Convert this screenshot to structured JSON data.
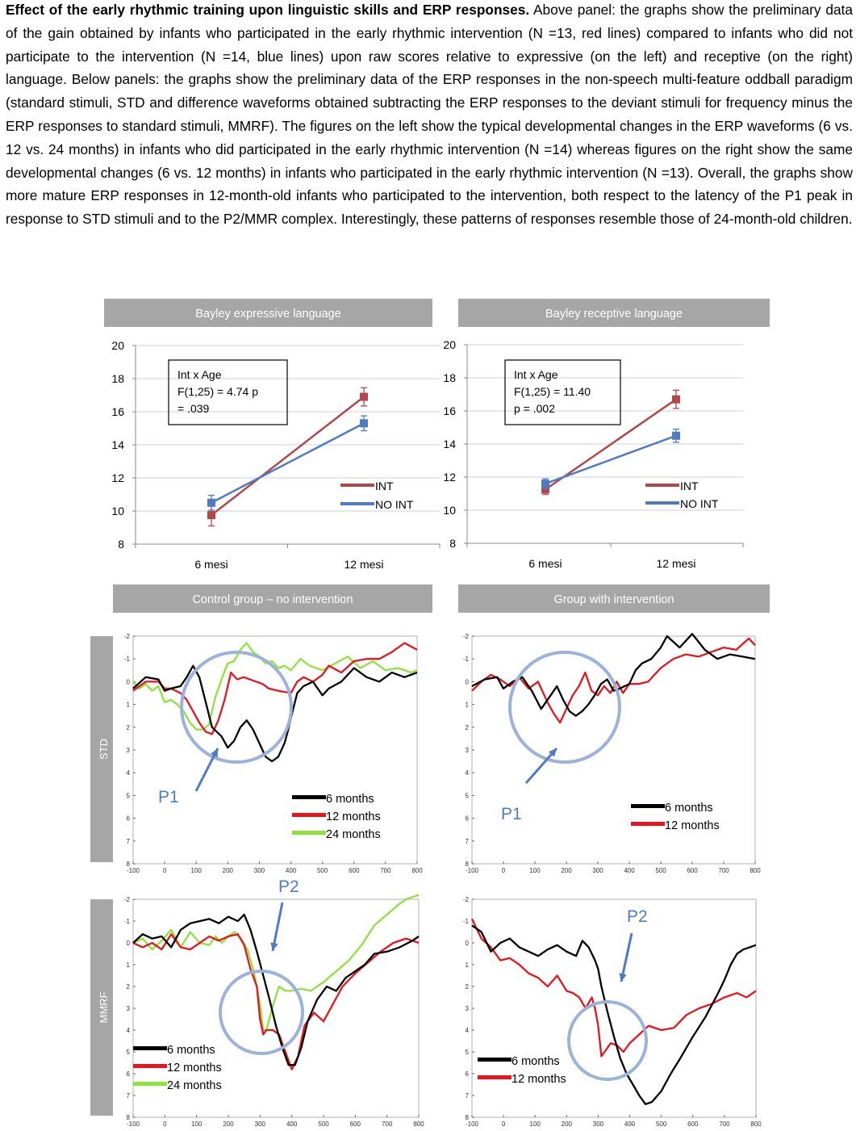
{
  "caption": {
    "title": "Effect of the early rhythmic training upon linguistic skills and ERP responses.",
    "body": "Above panel: the graphs show the preliminary data of the gain obtained by infants who participated in the early rhythmic intervention (N =13, red lines) compared to infants who did not participate to the intervention (N =14, blue lines) upon raw scores relative to expressive (on the left) and receptive (on the right) language. Below panels: the graphs show the preliminary data of the ERP responses in the non-speech multi-feature oddball paradigm (standard stimuli, STD and difference waveforms obtained subtracting the ERP responses to the deviant stimuli for frequency minus the ERP responses to standard stimuli, MMRF). The figures on the left show the typical developmental changes in the ERP waveforms (6 vs. 12 vs. 24 months) in infants who did participated in the early rhythmic intervention (N =14) whereas figures on the right show the same developmental changes (6 vs. 12 months) in infants who participated in the early rhythmic intervention (N =13). Overall, the graphs show more mature ERP responses in 12-month-old infants who participated to the intervention, both respect to the latency of the P1 peak in response to STD stimuli and to the P2/MMR complex. Interestingly, these patterns of responses resemble those of 24-month-old children."
  },
  "colors": {
    "int": "#b0484a",
    "noint": "#4f7ac4",
    "m6": "#000000",
    "m12": "#e8141e",
    "m24": "#8fe23d",
    "circle": "#9cb2d8",
    "arrow": "#4f7ac4",
    "panel_header": "#a6a6a6"
  },
  "chart_data": [
    {
      "type": "line",
      "title": "Bayley expressive language",
      "categories": [
        "6 mesi",
        "12 mesi"
      ],
      "ylim": [
        8,
        20
      ],
      "yticks": [
        "8",
        "10",
        "12",
        "14",
        "16",
        "18",
        "20"
      ],
      "series": [
        {
          "name": "INT",
          "values": [
            9.75,
            16.9
          ],
          "errors": [
            0.65,
            0.55
          ]
        },
        {
          "name": "NO INT",
          "values": [
            10.5,
            15.3
          ],
          "errors": [
            0.45,
            0.45
          ]
        }
      ],
      "annotation": [
        "Int x Age",
        "F(1,25) = 4.74 p",
        "= .039"
      ]
    },
    {
      "type": "line",
      "title": "Bayley receptive language",
      "categories": [
        "6 mesi",
        "12 mesi"
      ],
      "ylim": [
        8,
        20
      ],
      "yticks": [
        "8",
        "10",
        "12",
        "14",
        "16",
        "18",
        "20"
      ],
      "series": [
        {
          "name": "INT",
          "values": [
            11.25,
            16.7
          ],
          "errors": [
            0.3,
            0.55
          ]
        },
        {
          "name": "NO INT",
          "values": [
            11.6,
            14.5
          ],
          "errors": [
            0.3,
            0.4
          ]
        }
      ],
      "annotation": [
        "Int x Age",
        "F(1,25) = 11.40",
        "p = .002"
      ]
    },
    {
      "type": "line",
      "title": "Control group – no intervention",
      "row_label": "STD",
      "xlim": [
        -100,
        800
      ],
      "ylim": [
        -2,
        8
      ],
      "y_inverted": true,
      "xticks": [
        "-100",
        "0",
        "100",
        "200",
        "300",
        "400",
        "500",
        "600",
        "700",
        "800"
      ],
      "yticks": [
        "-2",
        "-1",
        "0",
        "1",
        "2",
        "3",
        "4",
        "5",
        "6",
        "7",
        "8"
      ],
      "peak_label": "P1",
      "series": [
        {
          "name": "6 months",
          "x": [
            -100,
            -60,
            -20,
            0,
            20,
            50,
            70,
            90,
            110,
            130,
            150,
            180,
            200,
            220,
            240,
            260,
            280,
            300,
            320,
            340,
            360,
            380,
            390,
            400,
            420,
            440,
            470,
            500,
            520,
            560,
            600,
            640,
            680,
            720,
            760,
            800
          ],
          "y": [
            0.3,
            -0.2,
            -0.1,
            0.4,
            0.3,
            0.2,
            -0.2,
            -0.7,
            -0.2,
            0.9,
            2.0,
            2.4,
            2.9,
            2.6,
            2.0,
            1.7,
            2.1,
            2.7,
            3.3,
            3.5,
            3.3,
            2.7,
            2.2,
            1.6,
            0.5,
            0.2,
            0.0,
            0.6,
            0.3,
            0.0,
            -0.6,
            -0.2,
            0.0,
            -0.4,
            -0.2,
            -0.4
          ]
        },
        {
          "name": "12 months",
          "x": [
            -100,
            -60,
            -20,
            0,
            20,
            50,
            70,
            90,
            110,
            130,
            150,
            170,
            190,
            210,
            230,
            250,
            270,
            290,
            310,
            330,
            360,
            400,
            420,
            440,
            470,
            500,
            520,
            560,
            600,
            640,
            680,
            720,
            760,
            800
          ],
          "y": [
            0.4,
            0.0,
            0.0,
            0.3,
            0.3,
            0.5,
            0.8,
            1.3,
            1.8,
            2.2,
            2.3,
            1.7,
            0.8,
            -0.4,
            -0.1,
            -0.2,
            -0.1,
            0.0,
            0.1,
            0.3,
            0.4,
            0.5,
            0.0,
            -0.2,
            0.0,
            -0.3,
            -0.7,
            -0.4,
            -0.9,
            -1.0,
            -1.0,
            -1.3,
            -1.7,
            -1.4
          ]
        },
        {
          "name": "24 months",
          "x": [
            -100,
            -80,
            -60,
            -40,
            -20,
            0,
            20,
            40,
            60,
            80,
            100,
            120,
            140,
            160,
            180,
            200,
            220,
            240,
            260,
            280,
            300,
            320,
            340,
            360,
            380,
            400,
            430,
            460,
            500,
            540,
            580,
            620,
            660,
            700,
            740,
            780,
            800
          ],
          "y": [
            0.0,
            0.3,
            0.1,
            0.4,
            0.2,
            0.9,
            0.8,
            1.0,
            1.3,
            1.8,
            2.1,
            2.1,
            1.9,
            0.7,
            -0.1,
            -0.8,
            -0.9,
            -1.4,
            -1.7,
            -1.3,
            -1.1,
            -0.8,
            -0.9,
            -0.6,
            -0.7,
            -0.5,
            -1.0,
            -0.7,
            -0.5,
            -0.8,
            -1.1,
            -0.6,
            -0.9,
            -0.5,
            -0.6,
            -0.4,
            -0.5
          ]
        }
      ]
    },
    {
      "type": "line",
      "title": "Group with intervention",
      "row_label": "STD",
      "xlim": [
        -100,
        800
      ],
      "ylim": [
        -2,
        8
      ],
      "y_inverted": true,
      "xticks": [
        "-100",
        "0",
        "100",
        "200",
        "300",
        "400",
        "500",
        "600",
        "700",
        "800"
      ],
      "yticks": [
        "-2",
        "-1",
        "0",
        "1",
        "2",
        "3",
        "4",
        "5",
        "6",
        "7",
        "8"
      ],
      "peak_label": "P1",
      "series": [
        {
          "name": "6 months",
          "x": [
            -100,
            -60,
            -20,
            0,
            30,
            60,
            90,
            120,
            150,
            170,
            190,
            210,
            230,
            250,
            270,
            290,
            310,
            330,
            350,
            370,
            400,
            420,
            440,
            470,
            500,
            520,
            560,
            600,
            640,
            680,
            720,
            760,
            800
          ],
          "y": [
            0.2,
            -0.1,
            -0.2,
            0.3,
            0.0,
            -0.2,
            0.4,
            1.2,
            0.6,
            0.2,
            0.8,
            1.3,
            1.5,
            1.3,
            1.0,
            0.6,
            0.1,
            -0.1,
            0.4,
            0.3,
            0.1,
            -0.5,
            -0.8,
            -1.0,
            -1.5,
            -2.0,
            -1.5,
            -2.1,
            -1.4,
            -1.0,
            -1.2,
            -1.1,
            -1.0
          ]
        },
        {
          "name": "12 months",
          "x": [
            -100,
            -70,
            -40,
            -10,
            20,
            50,
            80,
            110,
            140,
            160,
            180,
            200,
            220,
            240,
            260,
            280,
            300,
            320,
            340,
            360,
            380,
            400,
            430,
            460,
            500,
            540,
            580,
            620,
            660,
            700,
            740,
            780,
            800
          ],
          "y": [
            0.4,
            0.0,
            -0.3,
            -0.1,
            0.2,
            -0.2,
            0.3,
            0.0,
            0.9,
            1.4,
            1.8,
            1.2,
            0.6,
            0.2,
            -0.4,
            0.4,
            0.6,
            0.2,
            0.5,
            0.0,
            0.5,
            0.1,
            0.1,
            0.0,
            -0.6,
            -1.0,
            -1.2,
            -1.1,
            -1.3,
            -1.5,
            -1.4,
            -1.9,
            -1.6
          ]
        }
      ]
    },
    {
      "type": "line",
      "title": "",
      "row_label": "MMRF",
      "xlim": [
        -100,
        800
      ],
      "ylim": [
        -2,
        8
      ],
      "y_inverted": true,
      "xticks": [
        "-100",
        "0",
        "100",
        "200",
        "300",
        "400",
        "500",
        "600",
        "700",
        "800"
      ],
      "yticks": [
        "-2",
        "-1",
        "0",
        "1",
        "2",
        "3",
        "4",
        "5",
        "6",
        "7",
        "8"
      ],
      "peak_label": "P2",
      "series": [
        {
          "name": "6 months",
          "x": [
            -100,
            -70,
            -40,
            -10,
            20,
            50,
            80,
            110,
            140,
            170,
            200,
            230,
            250,
            270,
            290,
            310,
            330,
            350,
            370,
            390,
            410,
            430,
            450,
            480,
            510,
            540,
            570,
            600,
            630,
            660,
            700,
            740,
            780,
            800
          ],
          "y": [
            0.0,
            -0.4,
            -0.2,
            -0.3,
            0.2,
            -0.6,
            -0.9,
            -1.0,
            -1.1,
            -0.9,
            -1.2,
            -1.0,
            -1.3,
            -0.6,
            0.4,
            1.5,
            2.6,
            3.8,
            4.8,
            5.6,
            5.6,
            4.8,
            3.6,
            2.6,
            2.0,
            2.2,
            1.6,
            1.3,
            1.0,
            0.5,
            0.4,
            0.2,
            -0.1,
            -0.3
          ]
        },
        {
          "name": "12 months",
          "x": [
            -100,
            -70,
            -40,
            -10,
            20,
            50,
            80,
            110,
            140,
            170,
            200,
            230,
            250,
            270,
            290,
            300,
            310,
            320,
            340,
            360,
            380,
            400,
            420,
            440,
            470,
            500,
            530,
            560,
            600,
            640,
            680,
            720,
            760,
            800
          ],
          "y": [
            0.0,
            0.2,
            0.0,
            0.3,
            -0.4,
            0.2,
            0.3,
            0.0,
            -0.3,
            -0.1,
            -0.3,
            -0.4,
            0.1,
            1.2,
            2.0,
            3.5,
            4.2,
            4.0,
            4.0,
            4.2,
            5.0,
            5.8,
            5.2,
            3.8,
            3.2,
            3.6,
            2.8,
            2.0,
            1.4,
            0.9,
            0.4,
            0.0,
            -0.2,
            0.0
          ]
        },
        {
          "name": "24 months",
          "x": [
            -100,
            -70,
            -40,
            -10,
            20,
            50,
            80,
            110,
            140,
            160,
            180,
            200,
            220,
            240,
            260,
            280,
            300,
            310,
            320,
            340,
            360,
            380,
            400,
            430,
            460,
            500,
            540,
            580,
            620,
            660,
            700,
            740,
            760,
            780,
            800
          ],
          "y": [
            0.0,
            -0.2,
            0.3,
            -0.1,
            -0.6,
            0.2,
            -0.5,
            0.0,
            0.1,
            -0.3,
            0.0,
            -0.3,
            -0.5,
            -0.2,
            0.3,
            1.3,
            2.8,
            4.0,
            4.0,
            2.9,
            2.0,
            2.2,
            2.2,
            2.1,
            2.2,
            1.8,
            1.3,
            0.8,
            0.1,
            -0.8,
            -1.3,
            -1.8,
            -2.0,
            -2.1,
            -2.2
          ]
        }
      ]
    },
    {
      "type": "line",
      "title": "",
      "row_label": "MMRF",
      "xlim": [
        -100,
        800
      ],
      "ylim": [
        -2,
        8
      ],
      "y_inverted": true,
      "xticks": [
        "-100",
        "0",
        "100",
        "200",
        "300",
        "400",
        "500",
        "600",
        "700",
        "800"
      ],
      "yticks": [
        "-2",
        "-1",
        "0",
        "1",
        "2",
        "3",
        "4",
        "5",
        "6",
        "7",
        "8"
      ],
      "peak_label": "P2",
      "series": [
        {
          "name": "6 months",
          "x": [
            -100,
            -70,
            -40,
            -10,
            20,
            50,
            80,
            110,
            140,
            170,
            200,
            230,
            250,
            270,
            290,
            300,
            310,
            330,
            350,
            370,
            390,
            410,
            430,
            450,
            470,
            500,
            530,
            560,
            600,
            640,
            680,
            700,
            720,
            740,
            760,
            780,
            800
          ],
          "y": [
            -0.8,
            -0.5,
            0.4,
            0.0,
            -0.2,
            0.2,
            0.4,
            0.6,
            0.3,
            0.1,
            0.4,
            0.6,
            -0.1,
            0.2,
            0.8,
            1.2,
            2.0,
            3.2,
            4.3,
            5.3,
            6.0,
            6.5,
            7.0,
            7.4,
            7.3,
            6.8,
            6.0,
            5.3,
            4.3,
            3.4,
            2.3,
            1.7,
            1.0,
            0.5,
            0.3,
            0.2,
            0.1
          ]
        },
        {
          "name": "12 months",
          "x": [
            -100,
            -70,
            -40,
            -10,
            20,
            50,
            80,
            110,
            140,
            170,
            200,
            220,
            240,
            260,
            280,
            290,
            300,
            310,
            320,
            340,
            360,
            380,
            400,
            430,
            460,
            500,
            540,
            580,
            620,
            660,
            700,
            740,
            770,
            800
          ],
          "y": [
            -1.1,
            -0.2,
            0.2,
            0.8,
            0.7,
            1.0,
            1.4,
            1.6,
            2.0,
            1.5,
            2.2,
            2.3,
            2.5,
            3.0,
            2.5,
            3.0,
            3.8,
            5.2,
            5.0,
            4.6,
            4.7,
            5.0,
            4.6,
            4.2,
            3.8,
            4.0,
            3.9,
            3.3,
            3.0,
            2.8,
            2.5,
            2.3,
            2.5,
            2.2
          ]
        }
      ]
    }
  ],
  "panel_titles": [
    "Bayley expressive language",
    "Bayley receptive language",
    "Control group – no intervention",
    "Group with intervention"
  ],
  "row_labels": [
    "STD",
    "MMRF"
  ]
}
